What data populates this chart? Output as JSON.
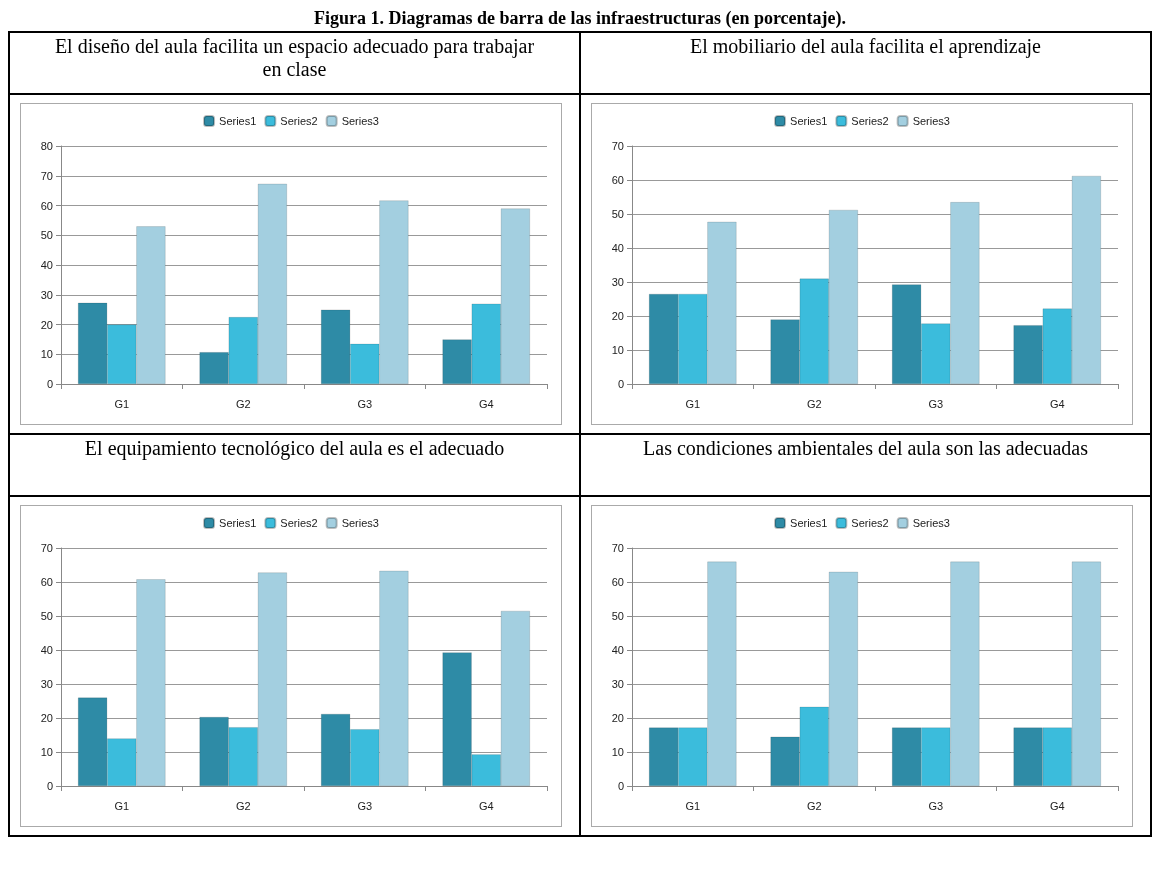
{
  "chart_data": [
    {
      "type": "bar",
      "title": "El diseño del aula facilita un espacio adecuado para trabajar en clase",
      "annotations": [
        "Figura 1. Diagramas de barra de las infraestructuras (en porcentaje)."
      ],
      "categories": [
        "G1",
        "G2",
        "G3",
        "G4"
      ],
      "ylim": [
        0,
        80
      ],
      "yticks": [
        0,
        10,
        20,
        30,
        40,
        50,
        60,
        70,
        80
      ],
      "grid": "y",
      "legend": "top",
      "series": [
        {
          "name": "Series1",
          "color": "#2e8ba6",
          "values": [
            27.3,
            10.7,
            25,
            15
          ]
        },
        {
          "name": "Series2",
          "color": "#3bbcdc",
          "values": [
            20,
            22.5,
            13.5,
            27
          ]
        },
        {
          "name": "Series3",
          "color": "#a3cfe0",
          "values": [
            53,
            67.3,
            61.7,
            59
          ]
        }
      ]
    },
    {
      "type": "bar",
      "title": "El mobiliario del aula facilita el aprendizaje",
      "categories": [
        "G1",
        "G2",
        "G3",
        "G4"
      ],
      "ylim": [
        0,
        70
      ],
      "yticks": [
        0,
        10,
        20,
        30,
        40,
        50,
        60,
        70
      ],
      "grid": "y",
      "legend": "top",
      "series": [
        {
          "name": "Series1",
          "color": "#2e8ba6",
          "values": [
            26.5,
            19,
            29.3,
            17.3
          ]
        },
        {
          "name": "Series2",
          "color": "#3bbcdc",
          "values": [
            26.5,
            31,
            17.8,
            22.2
          ]
        },
        {
          "name": "Series3",
          "color": "#a3cfe0",
          "values": [
            47.7,
            51.2,
            53.5,
            61.2
          ]
        }
      ]
    },
    {
      "type": "bar",
      "title": "El equipamiento tecnológico del aula es el adecuado",
      "categories": [
        "G1",
        "G2",
        "G3",
        "G4"
      ],
      "ylim": [
        0,
        70
      ],
      "yticks": [
        0,
        10,
        20,
        30,
        40,
        50,
        60,
        70
      ],
      "grid": "y",
      "legend": "top",
      "series": [
        {
          "name": "Series1",
          "color": "#2e8ba6",
          "values": [
            26,
            20.3,
            21.2,
            39.3
          ]
        },
        {
          "name": "Series2",
          "color": "#3bbcdc",
          "values": [
            14,
            17.3,
            16.7,
            9.3
          ]
        },
        {
          "name": "Series3",
          "color": "#a3cfe0",
          "values": [
            60.8,
            62.8,
            63.3,
            51.5
          ]
        }
      ]
    },
    {
      "type": "bar",
      "title": "Las condiciones ambientales del aula son  las adecuadas",
      "categories": [
        "G1",
        "G2",
        "G3",
        "G4"
      ],
      "ylim": [
        0,
        70
      ],
      "yticks": [
        0,
        10,
        20,
        30,
        40,
        50,
        60,
        70
      ],
      "grid": "y",
      "legend": "top",
      "series": [
        {
          "name": "Series1",
          "color": "#2e8ba6",
          "values": [
            17.2,
            14.5,
            17.2,
            17.2
          ]
        },
        {
          "name": "Series2",
          "color": "#3bbcdc",
          "values": [
            17.2,
            23.3,
            17.2,
            17.2
          ]
        },
        {
          "name": "Series3",
          "color": "#a3cfe0",
          "values": [
            66,
            63,
            66,
            66
          ]
        }
      ]
    }
  ]
}
